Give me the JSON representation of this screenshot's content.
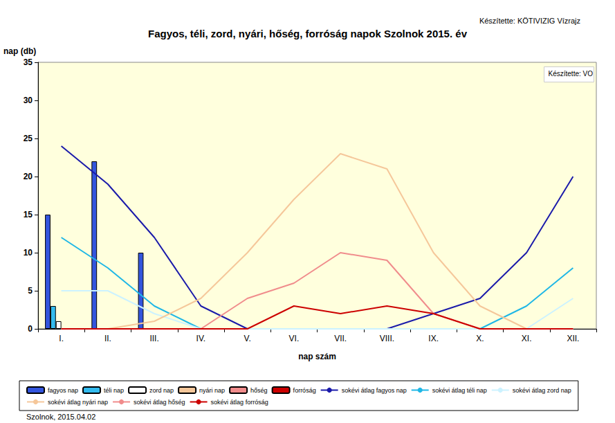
{
  "chart_data": {
    "type": "bar",
    "title": "Fagyos, téli, zord, nyári, hőség, forróság napok Szolnok 2015. év",
    "annotations": [
      "Készítette: KÖTIVIZIG Vízrajz",
      "Készítette: VO",
      "Szolnok, 2015.04.02"
    ],
    "x_label": "nap szám",
    "y_label": "nap (db)",
    "categories": [
      "I.",
      "II.",
      "III.",
      "IV.",
      "V.",
      "VI.",
      "VII.",
      "VIII.",
      "IX.",
      "X.",
      "XI.",
      "XII."
    ],
    "ylim": [
      0,
      35
    ],
    "yticks": [
      0,
      5,
      10,
      15,
      20,
      25,
      30,
      35
    ],
    "grid": false,
    "legend": "bottom",
    "series": [
      {
        "name": "fagyos nap",
        "type": "bar",
        "color": "#3355dd",
        "values": [
          15,
          22,
          10,
          null,
          null,
          null,
          null,
          null,
          null,
          null,
          null,
          null
        ]
      },
      {
        "name": "téli nap",
        "type": "bar",
        "color": "#33bbee",
        "values": [
          3,
          0,
          0,
          null,
          null,
          null,
          null,
          null,
          null,
          null,
          null,
          null
        ]
      },
      {
        "name": "zord nap",
        "type": "bar",
        "color": "#ffffff",
        "values": [
          1,
          0,
          0,
          null,
          null,
          null,
          null,
          null,
          null,
          null,
          null,
          null
        ]
      },
      {
        "name": "nyári nap",
        "type": "bar",
        "color": "#f5c79a",
        "values": [
          0,
          0,
          0,
          null,
          null,
          null,
          null,
          null,
          null,
          null,
          null,
          null
        ]
      },
      {
        "name": "hőség",
        "type": "bar",
        "color": "#f08c8c",
        "values": [
          0,
          0,
          0,
          null,
          null,
          null,
          null,
          null,
          null,
          null,
          null,
          null
        ]
      },
      {
        "name": "forróság",
        "type": "bar",
        "color": "#cc0000",
        "values": [
          0,
          0,
          0,
          null,
          null,
          null,
          null,
          null,
          null,
          null,
          null,
          null
        ]
      },
      {
        "name": "sokévi átlag fagyos nap",
        "type": "line",
        "color": "#1a1aaa",
        "values": [
          24,
          19,
          12,
          3,
          0,
          0,
          0,
          0,
          2,
          4,
          10,
          20
        ]
      },
      {
        "name": "sokévi átlag téli nap",
        "type": "line",
        "color": "#1fb7e6",
        "values": [
          12,
          8,
          3,
          0,
          0,
          0,
          0,
          0,
          0,
          0,
          3,
          8
        ]
      },
      {
        "name": "sokévi átlag zord nap",
        "type": "line",
        "color": "#ccf2ff",
        "values": [
          5,
          5,
          2,
          0,
          0,
          0,
          0,
          0,
          0,
          0,
          0,
          4
        ]
      },
      {
        "name": "sokévi átlag nyári nap",
        "type": "line",
        "color": "#f5c79a",
        "values": [
          0,
          0,
          1,
          4,
          10,
          17,
          23,
          21,
          10,
          3,
          0,
          0
        ]
      },
      {
        "name": "sokévi átlag hőség",
        "type": "line",
        "color": "#f08c8c",
        "values": [
          0,
          0,
          0,
          0,
          4,
          6,
          10,
          9,
          2,
          0,
          0,
          0
        ]
      },
      {
        "name": "sokévi átlag forróság",
        "type": "line",
        "color": "#cc0000",
        "values": [
          0,
          0,
          0,
          0,
          0,
          3,
          2,
          3,
          2,
          0,
          0,
          0
        ]
      }
    ]
  }
}
